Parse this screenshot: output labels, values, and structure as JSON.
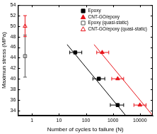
{
  "chart_data": {
    "type": "scatter",
    "x_label": "Number of cycles to failure (N)",
    "y_label": "Maximun stress (MPa)",
    "log": "x",
    "grid": false,
    "legend": "upper right",
    "xlim": [
      0.3,
      30000
    ],
    "xticks": [
      1,
      10,
      100,
      1000,
      10000
    ],
    "ylim": [
      33,
      54
    ],
    "yticks": [
      34,
      36,
      38,
      40,
      42,
      44,
      46,
      48,
      50,
      52,
      54
    ],
    "series": [
      {
        "name": "Epoxy",
        "color": "#000000",
        "marker": "square",
        "x": [
          40,
          300,
          1500
        ],
        "values": [
          45,
          40,
          35
        ],
        "x_min": [
          25,
          180,
          800
        ],
        "x_max": [
          70,
          500,
          2500
        ]
      },
      {
        "name": "CNT-GO/epoxy",
        "color": "#e8141b",
        "marker": "triangle",
        "x": [
          400,
          1500,
          10000
        ],
        "values": [
          45,
          40,
          35
        ],
        "x_min": [
          250,
          900,
          6000
        ],
        "x_max": [
          700,
          2500,
          17000
        ]
      },
      {
        "name": "Epoxy (quasi-static)",
        "color": "#555555",
        "marker": "square-open",
        "x": [
          0.55
        ],
        "values": [
          44.3
        ],
        "y_min": [
          40.3
        ],
        "y_max": [
          48.3
        ]
      },
      {
        "name": "CNT-GO/epoxy (quasi-static)",
        "color": "#e8141b",
        "marker": "triangle-open",
        "x": [
          0.55
        ],
        "values": [
          50
        ],
        "y_min": [
          48
        ],
        "y_max": [
          52
        ]
      }
    ],
    "fit_lines": [
      {
        "color": "#000000",
        "x": [
          20,
          3000
        ],
        "values": [
          46.5,
          33
        ]
      },
      {
        "color": "#e8141b",
        "x": [
          200,
          30000
        ],
        "values": [
          46.5,
          33
        ]
      }
    ]
  }
}
